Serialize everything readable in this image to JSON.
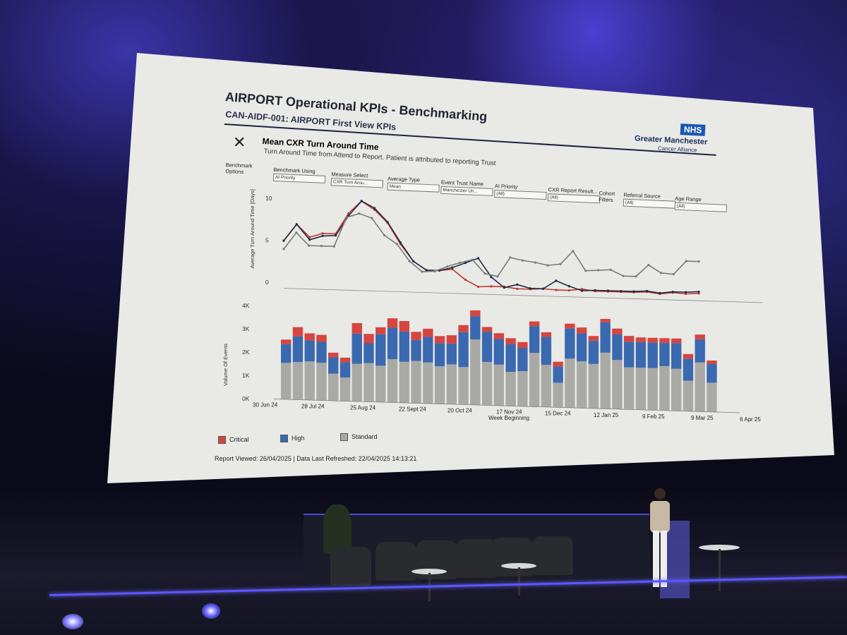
{
  "slide": {
    "title": "AIRPORT Operational KPIs - Benchmarking",
    "subtitle": "CAN-AIDF-001: AIRPORT First View KPIs",
    "logo": {
      "badge": "NHS",
      "org": "Greater Manchester",
      "sub": "Cancer Alliance"
    },
    "close_glyph": "✕",
    "chart_title": "Mean CXR Turn Around Time",
    "chart_subtitle": "Turn Around Time from Attend to Report. Patient is attributed to reporting Trust",
    "filters": {
      "benchmark_options": "Benchmark Options",
      "benchmark_using": {
        "label": "Benchmark Using",
        "value": "AI Priority"
      },
      "measure_select": {
        "label": "Measure Select",
        "value": "CXR Turn Arou..."
      },
      "average_type": {
        "label": "Average Type",
        "value": "Mean"
      },
      "event_trust_name": {
        "label": "Event Trust Name",
        "value": "Manchester Un..."
      },
      "ai_priority": {
        "label": "AI Priority",
        "value": "(All)"
      },
      "cxr_report_result": {
        "label": "CXR Report Result...",
        "value": "(All)"
      },
      "cohort_filters": "Cohort Filters",
      "referral_source": {
        "label": "Referral Source",
        "value": "(All)"
      },
      "age_range": {
        "label": "Age Range",
        "value": "(All)"
      }
    },
    "legend": [
      {
        "name": "Critical",
        "color": "#d6453f"
      },
      {
        "name": "High",
        "color": "#3b69b0"
      },
      {
        "name": "Standard",
        "color": "#a9a9a6"
      }
    ],
    "footer": "Report Viewed: 26/04/2025 | Data Last Refreshed: 22/04/2025 14:13:21"
  },
  "chart_data": [
    {
      "type": "line",
      "ylabel": "Average Turn Around Time [Days]",
      "yticks": [
        "10",
        "5",
        "0"
      ],
      "ylim": [
        0,
        11
      ],
      "series": [
        {
          "color": "#c0392b",
          "values": [
            5,
            7,
            5.5,
            6,
            6,
            8.5,
            10,
            9,
            7.5,
            5,
            3,
            2,
            2,
            2.2,
            1,
            0.2,
            0.3,
            0.3,
            0.1,
            0.1,
            0.2,
            0.1,
            0.1,
            0.3,
            0.1,
            0.1,
            0.1,
            0.1,
            0.2,
            0,
            0.2,
            0.1,
            0.2
          ]
        },
        {
          "color": "#1f2a44",
          "values": [
            5,
            7,
            5.2,
            5.7,
            5.8,
            8.2,
            10,
            9.2,
            7.6,
            5.2,
            3,
            2,
            2,
            2.4,
            3,
            3.6,
            1.4,
            0.2,
            0.6,
            0.2,
            0.2,
            1.2,
            0.6,
            0.1,
            0.2,
            0.2,
            0.2,
            0.2,
            0.3,
            0.1,
            0.3,
            0.3,
            0.4
          ]
        },
        {
          "color": "#7a7a78",
          "values": [
            4,
            6,
            4.5,
            4.5,
            4.5,
            8,
            8.5,
            8,
            6,
            5,
            3,
            1.8,
            1.9,
            2.5,
            3,
            3.4,
            1.8,
            1.5,
            3.8,
            3.5,
            3.3,
            3,
            3.2,
            4.8,
            2.5,
            2.6,
            2.7,
            2,
            2,
            3.4,
            2.5,
            2.4,
            4,
            4
          ]
        }
      ]
    },
    {
      "type": "bar",
      "ylabel": "Volume Of Events",
      "xlabel": "Week Beginning",
      "yticks": [
        "4K",
        "3K",
        "2K",
        "1K",
        "0K"
      ],
      "ylim": [
        0,
        4000
      ],
      "xticks": [
        "30 Jun 24",
        "28 Jul 24",
        "25 Aug 24",
        "22 Sept 24",
        "20 Oct 24",
        "17 Nov 24",
        "15 Dec 24",
        "12 Jan 25",
        "9 Feb 25",
        "9 Mar 25",
        "6 Apr 25"
      ],
      "series": [
        {
          "name": "Standard",
          "values": [
            1550,
            1600,
            1650,
            1600,
            1150,
            1000,
            1600,
            1650,
            1550,
            1850,
            1750,
            1800,
            1750,
            1600,
            1700,
            1600,
            2800,
            1850,
            1750,
            1450,
            1500,
            2300,
            1800,
            1050,
            2100,
            2000,
            1900,
            2400,
            2100,
            1800,
            1800,
            1800,
            1900,
            1800,
            1300,
            2100,
            1250
          ]
        },
        {
          "name": "High",
          "values": [
            800,
            1100,
            900,
            900,
            700,
            650,
            1300,
            850,
            1350,
            1350,
            1300,
            900,
            1100,
            1000,
            900,
            1500,
            1000,
            1300,
            1100,
            1200,
            1000,
            1150,
            1200,
            700,
            1300,
            1200,
            1000,
            1300,
            1100,
            1100,
            1100,
            1100,
            1000,
            1100,
            950,
            1000,
            800
          ]
        },
        {
          "name": "Critical",
          "values": [
            200,
            400,
            300,
            300,
            200,
            200,
            450,
            400,
            300,
            400,
            450,
            350,
            350,
            300,
            350,
            300,
            250,
            200,
            250,
            250,
            250,
            200,
            200,
            200,
            200,
            250,
            200,
            150,
            250,
            250,
            200,
            200,
            200,
            200,
            200,
            200,
            150
          ]
        }
      ]
    }
  ]
}
